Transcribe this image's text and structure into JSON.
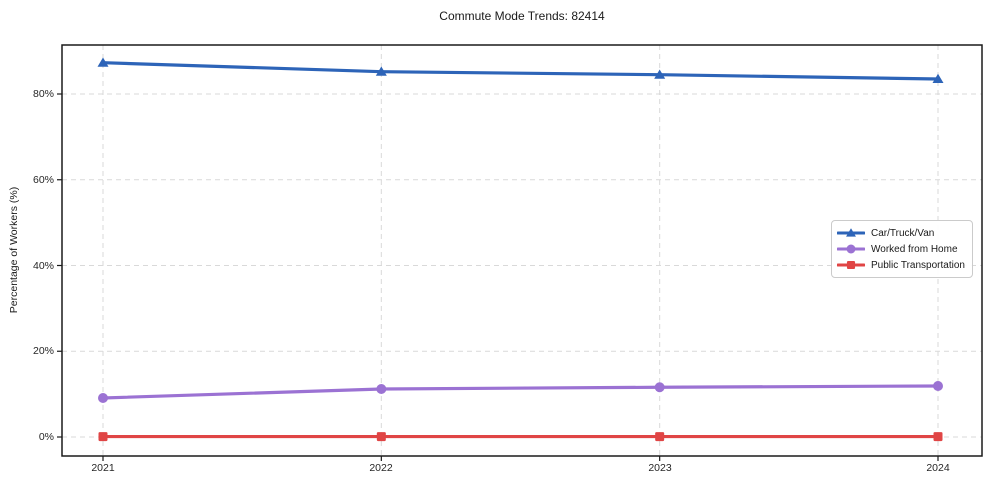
{
  "page": {
    "background": "#ffffff"
  },
  "chart_data": {
    "type": "line",
    "title": "Commute Mode Trends: 82414",
    "xlabel": "",
    "ylabel": "Percentage of Workers (%)",
    "categories": [
      "2021",
      "2022",
      "2023",
      "2024"
    ],
    "ytick_labels": [
      "0%",
      "20%",
      "40%",
      "60%",
      "80%"
    ],
    "yticks": [
      0,
      20,
      40,
      60,
      80
    ],
    "ylim": [
      -4.4,
      91.3
    ],
    "grid": true,
    "grid_style": "dashed",
    "grid_color": "#d9d9d9",
    "axis_color": "#1a1a1a",
    "legend_position": "center-right",
    "series": [
      {
        "name": "Car/Truck/Van",
        "color": "#2d64b8",
        "marker": "triangle",
        "values": [
          87.3,
          85.2,
          84.5,
          83.5
        ]
      },
      {
        "name": "Worked from Home",
        "color": "#9b72d3",
        "marker": "circle",
        "values": [
          9.1,
          11.2,
          11.6,
          11.9
        ]
      },
      {
        "name": "Public Transportation",
        "color": "#e04545",
        "marker": "square",
        "values": [
          0.1,
          0.1,
          0.1,
          0.1
        ]
      }
    ]
  }
}
